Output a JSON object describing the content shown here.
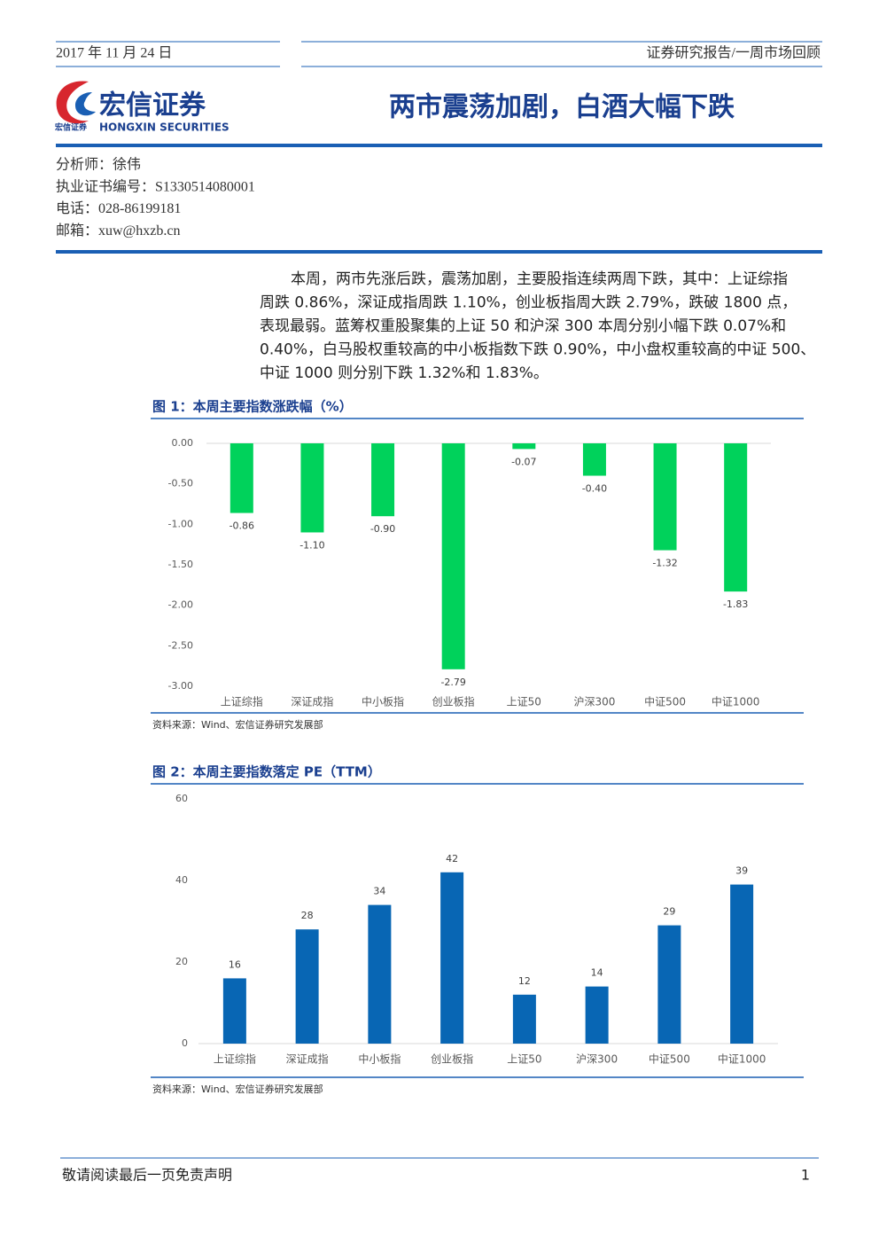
{
  "header": {
    "date": "2017 年 11 月 24 日",
    "report_type": "证券研究报告/一周市场回顾",
    "logo_cn": "宏信证券",
    "logo_en": "HONGXIN SECURITIES",
    "logo_small": "宏信证券",
    "title": "两市震荡加剧，白酒大幅下跌"
  },
  "analyst": [
    "分析师：徐伟",
    "执业证书编号：S1330514080001",
    "电话：028-86199181",
    "邮箱：xuw@hxzb.cn"
  ],
  "body": [
    "本周，两市先涨后跌，震荡加剧，主要股指连续两周下跌，其中：上证综指",
    "周跌 0.86%，深证成指周跌 1.10%，创业板指周大跌 2.79%，跌破 1800 点，",
    "表现最弱。蓝筹权重股聚集的上证 50 和沪深 300 本周分别小幅下跌 0.07%和",
    "0.40%，白马股权重较高的中小板指数下跌 0.90%，中小盘权重较高的中证 500、",
    "中证 1000 则分别下跌 1.32%和 1.83%。"
  ],
  "chart_data": [
    {
      "type": "bar",
      "title": "图 1：本周主要指数涨跌幅（%）",
      "source": "资料来源：Wind、宏信证券研究发展部",
      "categories": [
        "上证综指",
        "深证成指",
        "中小板指",
        "创业板指",
        "上证50",
        "沪深300",
        "中证500",
        "中证1000"
      ],
      "values": [
        -0.86,
        -1.1,
        -0.9,
        -2.79,
        -0.07,
        -0.4,
        -1.32,
        -1.83
      ],
      "value_labels": [
        "-0.86",
        "-1.10",
        "-0.90",
        "-2.79",
        "-0.07",
        "-0.40",
        "-1.32",
        "-1.83"
      ],
      "color": "#00d25b",
      "ylim": [
        -3,
        0
      ],
      "yticks": [
        {
          "value": 0,
          "label": "0.00"
        },
        {
          "value": -0.5,
          "label": "-0.50"
        },
        {
          "value": -1,
          "label": "-1.00"
        },
        {
          "value": -1.5,
          "label": "-1.50"
        },
        {
          "value": -2,
          "label": "-2.00"
        },
        {
          "value": -2.5,
          "label": "-2.50"
        },
        {
          "value": -3,
          "label": "-3.00"
        }
      ],
      "grid": false
    },
    {
      "type": "bar",
      "title": "图 2：本周主要指数落定 PE（TTM）",
      "source": "资料来源：Wind、宏信证券研究发展部",
      "categories": [
        "上证综指",
        "深证成指",
        "中小板指",
        "创业板指",
        "上证50",
        "沪深300",
        "中证500",
        "中证1000"
      ],
      "values": [
        16,
        28,
        34,
        42,
        12,
        14,
        29,
        39
      ],
      "color": "#0866b4",
      "ylim": [
        0,
        60
      ],
      "yticks": [
        0,
        20,
        40,
        60
      ],
      "grid": false
    }
  ],
  "footer": {
    "disclaimer": "敬请阅读最后一页免责声明",
    "page": "1"
  }
}
